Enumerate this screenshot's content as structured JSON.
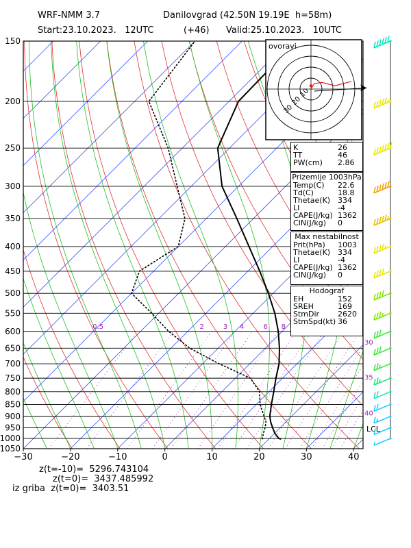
{
  "header": {
    "model": "WRF-NMM 3.7",
    "location": "Danilovgrad (42.50N 19.19E  h=58m)",
    "start": "Start:23.10.2023.   12UTC",
    "offset": "(+46)",
    "valid": "Valid:25.10.2023.   10UTC"
  },
  "hodograph": {
    "label": "ovoravi",
    "ring_labels": [
      "10",
      "20",
      "30"
    ]
  },
  "indices": [
    {
      "k": "K",
      "v": "26"
    },
    {
      "k": "TT",
      "v": "46"
    },
    {
      "k": "PW(cm)",
      "v": "2.86"
    }
  ],
  "surface": {
    "title": "Prizemlje 1003hPa",
    "rows": [
      {
        "k": "Temp(C)",
        "v": "22.6"
      },
      {
        "k": "Td(C)",
        "v": "18.8"
      },
      {
        "k": "Thetae(K)",
        "v": "334"
      },
      {
        "k": "LI",
        "v": "-4"
      },
      {
        "k": "CAPE(J/kg)",
        "v": "1362"
      },
      {
        "k": "CIN(J/kg)",
        "v": "0"
      }
    ]
  },
  "max_instability": {
    "title": "Max nestabilnost",
    "rows": [
      {
        "k": "Prit(hPa)",
        "v": "1003"
      },
      {
        "k": "Thetae(K)",
        "v": "334"
      },
      {
        "k": "LI",
        "v": "-4"
      },
      {
        "k": "CAPE(J/kg)",
        "v": "1362"
      },
      {
        "k": "CIN(J/kg)",
        "v": "0"
      }
    ]
  },
  "hodograf": {
    "title": "Hodograf",
    "rows": [
      {
        "k": "EH",
        "v": "152"
      },
      {
        "k": "SREH",
        "v": "169"
      },
      {
        "k": "StmDir",
        "v": "2620"
      },
      {
        "k": "StmSpd(kt)",
        "v": "36"
      }
    ]
  },
  "bottom": {
    "line1": "z(t=-10)=  5296.743104",
    "line2": "z(t=0)=  3437.485992",
    "line3": "iz griba  z(t=0)=  3403.51"
  },
  "chart_data": {
    "type": "line",
    "pressure_levels": [
      150,
      200,
      250,
      300,
      350,
      400,
      450,
      500,
      550,
      600,
      650,
      700,
      750,
      800,
      850,
      900,
      950,
      1000,
      1050
    ],
    "x_ticks": [
      -30,
      -20,
      -10,
      0,
      10,
      20,
      30,
      40
    ],
    "xlim": [
      -30,
      42
    ],
    "ylim": [
      1050,
      150
    ],
    "temperature_series": {
      "p": [
        1003,
        1000,
        975,
        950,
        925,
        900,
        850,
        800,
        750,
        700,
        650,
        600,
        550,
        500,
        450,
        400,
        350,
        300,
        250,
        200,
        150
      ],
      "t": [
        22.6,
        22.0,
        20.0,
        18.4,
        16.8,
        15.4,
        13.2,
        11.0,
        8.6,
        6.2,
        3.0,
        -0.8,
        -5.4,
        -11.0,
        -17.5,
        -25.0,
        -33.5,
        -43.5,
        -52.5,
        -58.0,
        -58.5
      ]
    },
    "dewpoint_series": {
      "p": [
        1003,
        1000,
        975,
        950,
        925,
        900,
        850,
        800,
        750,
        700,
        650,
        600,
        550,
        500,
        450,
        400,
        350,
        300,
        250,
        200,
        150
      ],
      "td": [
        18.8,
        18.5,
        17.6,
        16.8,
        15.8,
        14.2,
        10.8,
        8.0,
        3.2,
        -6.5,
        -16.0,
        -24.0,
        -31.5,
        -40.0,
        -43.0,
        -40.0,
        -44.5,
        -53.0,
        -63.0,
        -77.0,
        -80.0
      ]
    },
    "mixing_ratio_labels": [
      {
        "v": "0.5",
        "x": -39.0
      },
      {
        "v": "2",
        "x": -17.0
      },
      {
        "v": "3",
        "x": -12.0
      },
      {
        "v": "4",
        "x": -8.5
      },
      {
        "v": "6",
        "x": -3.5
      },
      {
        "v": "8",
        "x": 0.3
      }
    ],
    "theta_labels": [
      {
        "v": "30",
        "p": 630
      },
      {
        "v": "35",
        "p": 745
      },
      {
        "v": "40",
        "p": 885
      }
    ],
    "lcl_label": "LCL",
    "wind_profile": {
      "p": [
        150,
        200,
        250,
        300,
        350,
        400,
        450,
        500,
        550,
        600,
        650,
        700,
        750,
        800,
        850,
        900,
        950,
        1000
      ],
      "speed_kt": [
        60,
        55,
        70,
        60,
        55,
        45,
        40,
        40,
        35,
        30,
        30,
        25,
        25,
        20,
        20,
        15,
        10,
        8
      ],
      "colors": [
        "#00e8c0",
        "#e8e800",
        "#e8e800",
        "#f0a000",
        "#e8c000",
        "#e8e800",
        "#e8e800",
        "#80e800",
        "#80e800",
        "#40e840",
        "#40e840",
        "#40e840",
        "#20e880",
        "#20e8c0",
        "#20d0ff",
        "#20d0ff",
        "#20d0ff",
        "#20d0ff"
      ]
    },
    "hodograph_points": [
      {
        "u": 0,
        "v": 0
      },
      {
        "u": 3,
        "v": 5
      },
      {
        "u": 10,
        "v": 6
      },
      {
        "u": 22,
        "v": 3
      },
      {
        "u": 37,
        "v": 7
      }
    ],
    "storm_motion": {
      "u": 35,
      "v": 1
    }
  }
}
